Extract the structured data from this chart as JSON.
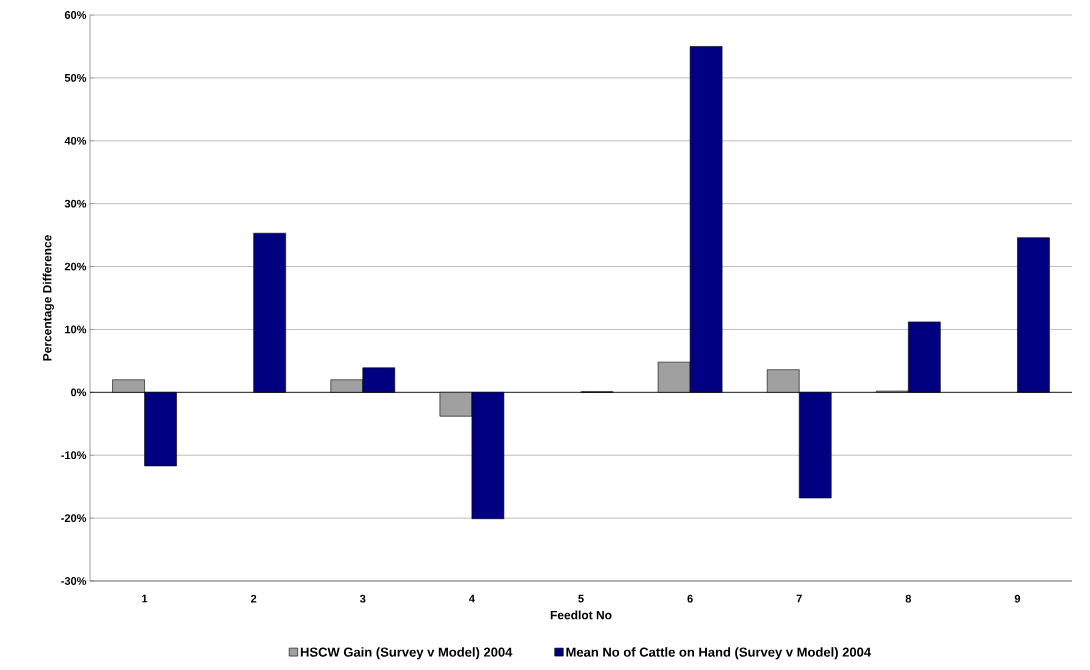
{
  "chart_data": {
    "type": "bar",
    "xlabel": "Feedlot No",
    "ylabel": "Percentage Difference",
    "categories": [
      "1",
      "2",
      "3",
      "4",
      "5",
      "6",
      "7",
      "8",
      "9"
    ],
    "series": [
      {
        "name": "HSCW Gain (Survey v Model) 2004",
        "color": "#a0a0a0",
        "values": [
          2.0,
          null,
          2.0,
          -3.8,
          null,
          4.8,
          3.6,
          0.2,
          null
        ]
      },
      {
        "name": "Mean No of Cattle on Hand (Survey v Model) 2004",
        "color": "#000080",
        "values": [
          -11.7,
          25.3,
          3.9,
          -20.1,
          0.1,
          55.0,
          -16.8,
          11.2,
          24.6
        ]
      }
    ],
    "ylim": [
      -30,
      60
    ],
    "yticks": [
      {
        "value": -30,
        "label": "-30%"
      },
      {
        "value": -20,
        "label": "-20%"
      },
      {
        "value": -10,
        "label": "-10%"
      },
      {
        "value": 0,
        "label": "0%"
      },
      {
        "value": 10,
        "label": "10%"
      },
      {
        "value": 20,
        "label": "20%"
      },
      {
        "value": 30,
        "label": "30%"
      },
      {
        "value": 40,
        "label": "40%"
      },
      {
        "value": 50,
        "label": "50%"
      },
      {
        "value": 60,
        "label": "60%"
      }
    ],
    "grid": "y",
    "legend": "bottom"
  }
}
